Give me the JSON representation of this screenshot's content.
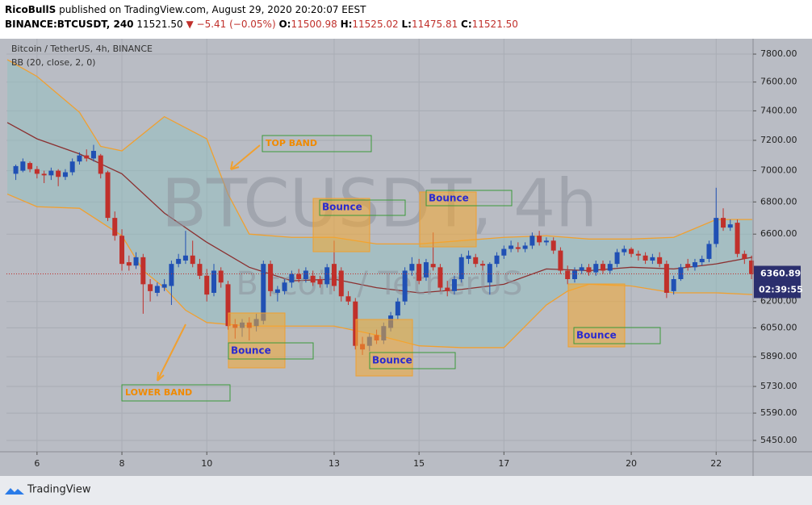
{
  "header": {
    "author": "RicoBullS",
    "published": "published on TradingView.com, August 29, 2020 20:20:07 EEST",
    "symbol": "BINANCE:BTCUSDT, 240",
    "last": "11521.50",
    "change": "▼ −5.41 (−0.05%)",
    "open_label": "O:",
    "open": "11500.98",
    "high_label": "H:",
    "high": "11525.02",
    "low_label": "L:",
    "low": "11475.81",
    "close_label": "C:",
    "close": "11521.50"
  },
  "chart_data": {
    "type": "candlestick",
    "title": "Bitcoin / TetherUS, 4h, BINANCE",
    "indicator": "BB (20, close, 2, 0)",
    "watermark": "BTCUSDT, 4h",
    "watermark_sub": "Bitcoin / TetherUS",
    "log_scale": true,
    "grid": true,
    "up_color": "#2050b4",
    "down_color": "#c0302b",
    "band_fill": "#8fc0c0",
    "xlim": [
      5.28,
      22.87
    ],
    "xticks": [
      6,
      8,
      10,
      13,
      15,
      17,
      20,
      22
    ],
    "ylim": [
      5393,
      7912
    ],
    "yticks": [
      {
        "value": 7800,
        "label": "7800.00"
      },
      {
        "value": 7600,
        "label": "7600.00"
      },
      {
        "value": 7400,
        "label": "7400.00"
      },
      {
        "value": 7200,
        "label": "7200.00"
      },
      {
        "value": 7000,
        "label": "7000.00"
      },
      {
        "value": 6800,
        "label": "6800.00"
      },
      {
        "value": 6600,
        "label": "6600.00"
      },
      {
        "value": 6200,
        "label": "6200.00"
      },
      {
        "value": 6050,
        "label": "6050.00"
      },
      {
        "value": 5890,
        "label": "5890.00"
      },
      {
        "value": 5730,
        "label": "5730.00"
      },
      {
        "value": 5590,
        "label": "5590.00"
      },
      {
        "value": 5450,
        "label": "5450.00"
      }
    ],
    "last_price": 6360.89,
    "countdown": "02:39:55",
    "candles": [
      {
        "x": 5.5,
        "open": 6980,
        "high": 7040,
        "low": 6940,
        "close": 7030
      },
      {
        "x": 5.667,
        "open": 7000,
        "high": 7080,
        "low": 6990,
        "close": 7060
      },
      {
        "x": 5.833,
        "open": 7050,
        "high": 7060,
        "low": 6990,
        "close": 7010
      },
      {
        "x": 6,
        "open": 7010,
        "high": 7030,
        "low": 6950,
        "close": 6980
      },
      {
        "x": 6.167,
        "open": 6980,
        "high": 7000,
        "low": 6920,
        "close": 6970
      },
      {
        "x": 6.333,
        "open": 6970,
        "high": 7020,
        "low": 6940,
        "close": 7000
      },
      {
        "x": 6.5,
        "open": 7000,
        "high": 7010,
        "low": 6900,
        "close": 6960
      },
      {
        "x": 6.667,
        "open": 6960,
        "high": 7010,
        "low": 6940,
        "close": 6990
      },
      {
        "x": 6.833,
        "open": 6990,
        "high": 7080,
        "low": 6970,
        "close": 7060
      },
      {
        "x": 7,
        "open": 7060,
        "high": 7120,
        "low": 7040,
        "close": 7100
      },
      {
        "x": 7.167,
        "open": 7100,
        "high": 7140,
        "low": 7060,
        "close": 7080
      },
      {
        "x": 7.333,
        "open": 7080,
        "high": 7170,
        "low": 7060,
        "close": 7130
      },
      {
        "x": 7.5,
        "open": 7100,
        "high": 7110,
        "low": 6950,
        "close": 6980
      },
      {
        "x": 7.667,
        "open": 6990,
        "high": 7000,
        "low": 6680,
        "close": 6700
      },
      {
        "x": 7.833,
        "open": 6700,
        "high": 6740,
        "low": 6560,
        "close": 6590
      },
      {
        "x": 8,
        "open": 6590,
        "high": 6630,
        "low": 6380,
        "close": 6420
      },
      {
        "x": 8.167,
        "open": 6430,
        "high": 6470,
        "low": 6380,
        "close": 6410
      },
      {
        "x": 8.333,
        "open": 6410,
        "high": 6490,
        "low": 6390,
        "close": 6460
      },
      {
        "x": 8.5,
        "open": 6460,
        "high": 6480,
        "low": 6130,
        "close": 6300
      },
      {
        "x": 8.667,
        "open": 6300,
        "high": 6330,
        "low": 6200,
        "close": 6260
      },
      {
        "x": 8.833,
        "open": 6250,
        "high": 6310,
        "low": 6230,
        "close": 6290
      },
      {
        "x": 9,
        "open": 6280,
        "high": 6330,
        "low": 6260,
        "close": 6300
      },
      {
        "x": 9.167,
        "open": 6290,
        "high": 6440,
        "low": 6180,
        "close": 6420
      },
      {
        "x": 9.333,
        "open": 6420,
        "high": 6480,
        "low": 6400,
        "close": 6450
      },
      {
        "x": 9.5,
        "open": 6440,
        "high": 6620,
        "low": 6420,
        "close": 6470
      },
      {
        "x": 9.667,
        "open": 6470,
        "high": 6560,
        "low": 6400,
        "close": 6420
      },
      {
        "x": 9.833,
        "open": 6420,
        "high": 6450,
        "low": 6330,
        "close": 6350
      },
      {
        "x": 10,
        "open": 6350,
        "high": 6390,
        "low": 6200,
        "close": 6240
      },
      {
        "x": 10.167,
        "open": 6250,
        "high": 6420,
        "low": 6230,
        "close": 6380
      },
      {
        "x": 10.333,
        "open": 6380,
        "high": 6400,
        "low": 6280,
        "close": 6310
      },
      {
        "x": 10.5,
        "open": 6300,
        "high": 6320,
        "low": 6040,
        "close": 6060
      },
      {
        "x": 10.667,
        "open": 6070,
        "high": 6100,
        "low": 5990,
        "close": 6050
      },
      {
        "x": 10.833,
        "open": 6050,
        "high": 6100,
        "low": 6000,
        "close": 6080
      },
      {
        "x": 11,
        "open": 6080,
        "high": 6110,
        "low": 5980,
        "close": 6050
      },
      {
        "x": 11.167,
        "open": 6060,
        "high": 6130,
        "low": 6030,
        "close": 6100
      },
      {
        "x": 11.333,
        "open": 6090,
        "high": 6440,
        "low": 6070,
        "close": 6420
      },
      {
        "x": 11.5,
        "open": 6420,
        "high": 6440,
        "low": 6230,
        "close": 6260
      },
      {
        "x": 11.667,
        "open": 6250,
        "high": 6290,
        "low": 6200,
        "close": 6270
      },
      {
        "x": 11.833,
        "open": 6260,
        "high": 6330,
        "low": 6240,
        "close": 6310
      },
      {
        "x": 12,
        "open": 6310,
        "high": 6380,
        "low": 6280,
        "close": 6360
      },
      {
        "x": 12.167,
        "open": 6360,
        "high": 6390,
        "low": 6310,
        "close": 6330
      },
      {
        "x": 12.333,
        "open": 6330,
        "high": 6400,
        "low": 6310,
        "close": 6380
      },
      {
        "x": 12.5,
        "open": 6350,
        "high": 6380,
        "low": 6290,
        "close": 6310
      },
      {
        "x": 12.667,
        "open": 6330,
        "high": 6350,
        "low": 6280,
        "close": 6300
      },
      {
        "x": 12.833,
        "open": 6300,
        "high": 6420,
        "low": 6280,
        "close": 6400
      },
      {
        "x": 13,
        "open": 6420,
        "high": 6560,
        "low": 6260,
        "close": 6290
      },
      {
        "x": 13.167,
        "open": 6380,
        "high": 6400,
        "low": 6200,
        "close": 6230
      },
      {
        "x": 13.333,
        "open": 6230,
        "high": 6260,
        "low": 6180,
        "close": 6200
      },
      {
        "x": 13.5,
        "open": 6200,
        "high": 6220,
        "low": 5930,
        "close": 5950
      },
      {
        "x": 13.667,
        "open": 5960,
        "high": 6000,
        "low": 5900,
        "close": 5930
      },
      {
        "x": 13.833,
        "open": 5950,
        "high": 6020,
        "low": 5920,
        "close": 6000
      },
      {
        "x": 14,
        "open": 6010,
        "high": 6040,
        "low": 5960,
        "close": 5980
      },
      {
        "x": 14.167,
        "open": 5980,
        "high": 6080,
        "low": 5960,
        "close": 6060
      },
      {
        "x": 14.333,
        "open": 6050,
        "high": 6140,
        "low": 6030,
        "close": 6120
      },
      {
        "x": 14.5,
        "open": 6120,
        "high": 6220,
        "low": 6100,
        "close": 6200
      },
      {
        "x": 14.667,
        "open": 6200,
        "high": 6400,
        "low": 6180,
        "close": 6380
      },
      {
        "x": 14.833,
        "open": 6380,
        "high": 6460,
        "low": 6350,
        "close": 6420
      },
      {
        "x": 15,
        "open": 6420,
        "high": 6450,
        "low": 6300,
        "close": 6320
      },
      {
        "x": 15.167,
        "open": 6340,
        "high": 6450,
        "low": 6320,
        "close": 6430
      },
      {
        "x": 15.333,
        "open": 6420,
        "high": 6610,
        "low": 6380,
        "close": 6400
      },
      {
        "x": 15.5,
        "open": 6400,
        "high": 6420,
        "low": 6260,
        "close": 6280
      },
      {
        "x": 15.667,
        "open": 6280,
        "high": 6320,
        "low": 6230,
        "close": 6260
      },
      {
        "x": 15.833,
        "open": 6260,
        "high": 6350,
        "low": 6240,
        "close": 6330
      },
      {
        "x": 16,
        "open": 6330,
        "high": 6480,
        "low": 6310,
        "close": 6460
      },
      {
        "x": 16.167,
        "open": 6450,
        "high": 6500,
        "low": 6420,
        "close": 6470
      },
      {
        "x": 16.333,
        "open": 6460,
        "high": 6480,
        "low": 6400,
        "close": 6420
      },
      {
        "x": 16.5,
        "open": 6420,
        "high": 6440,
        "low": 6380,
        "close": 6410
      },
      {
        "x": 16.667,
        "open": 6310,
        "high": 6430,
        "low": 6240,
        "close": 6420
      },
      {
        "x": 16.833,
        "open": 6420,
        "high": 6490,
        "low": 6400,
        "close": 6470
      },
      {
        "x": 17,
        "open": 6470,
        "high": 6530,
        "low": 6450,
        "close": 6510
      },
      {
        "x": 17.167,
        "open": 6510,
        "high": 6560,
        "low": 6490,
        "close": 6530
      },
      {
        "x": 17.333,
        "open": 6520,
        "high": 6550,
        "low": 6490,
        "close": 6510
      },
      {
        "x": 17.5,
        "open": 6510,
        "high": 6550,
        "low": 6490,
        "close": 6530
      },
      {
        "x": 17.667,
        "open": 6530,
        "high": 6610,
        "low": 6510,
        "close": 6590
      },
      {
        "x": 17.833,
        "open": 6590,
        "high": 6620,
        "low": 6530,
        "close": 6550
      },
      {
        "x": 18,
        "open": 6550,
        "high": 6580,
        "low": 6530,
        "close": 6560
      },
      {
        "x": 18.167,
        "open": 6560,
        "high": 6580,
        "low": 6480,
        "close": 6500
      },
      {
        "x": 18.333,
        "open": 6500,
        "high": 6520,
        "low": 6360,
        "close": 6380
      },
      {
        "x": 18.5,
        "open": 6380,
        "high": 6410,
        "low": 6300,
        "close": 6330
      },
      {
        "x": 18.667,
        "open": 6330,
        "high": 6400,
        "low": 6310,
        "close": 6380
      },
      {
        "x": 18.833,
        "open": 6380,
        "high": 6420,
        "low": 6360,
        "close": 6400
      },
      {
        "x": 19,
        "open": 6400,
        "high": 6420,
        "low": 6350,
        "close": 6370
      },
      {
        "x": 19.167,
        "open": 6370,
        "high": 6440,
        "low": 6350,
        "close": 6420
      },
      {
        "x": 19.333,
        "open": 6420,
        "high": 6440,
        "low": 6360,
        "close": 6380
      },
      {
        "x": 19.5,
        "open": 6380,
        "high": 6440,
        "low": 6360,
        "close": 6420
      },
      {
        "x": 19.667,
        "open": 6420,
        "high": 6510,
        "low": 6400,
        "close": 6490
      },
      {
        "x": 19.833,
        "open": 6490,
        "high": 6530,
        "low": 6470,
        "close": 6510
      },
      {
        "x": 20,
        "open": 6510,
        "high": 6520,
        "low": 6460,
        "close": 6480
      },
      {
        "x": 20.167,
        "open": 6480,
        "high": 6500,
        "low": 6440,
        "close": 6470
      },
      {
        "x": 20.333,
        "open": 6470,
        "high": 6490,
        "low": 6420,
        "close": 6440
      },
      {
        "x": 20.5,
        "open": 6440,
        "high": 6480,
        "low": 6420,
        "close": 6460
      },
      {
        "x": 20.667,
        "open": 6460,
        "high": 6490,
        "low": 6400,
        "close": 6420
      },
      {
        "x": 20.833,
        "open": 6420,
        "high": 6440,
        "low": 6220,
        "close": 6250
      },
      {
        "x": 21,
        "open": 6260,
        "high": 6350,
        "low": 6240,
        "close": 6330
      },
      {
        "x": 21.167,
        "open": 6330,
        "high": 6420,
        "low": 6320,
        "close": 6400
      },
      {
        "x": 21.333,
        "open": 6420,
        "high": 6450,
        "low": 6380,
        "close": 6400
      },
      {
        "x": 21.5,
        "open": 6400,
        "high": 6450,
        "low": 6380,
        "close": 6430
      },
      {
        "x": 21.667,
        "open": 6430,
        "high": 6470,
        "low": 6410,
        "close": 6450
      },
      {
        "x": 21.833,
        "open": 6450,
        "high": 6560,
        "low": 6430,
        "close": 6540
      },
      {
        "x": 22,
        "open": 6540,
        "high": 6890,
        "low": 6520,
        "close": 6700
      },
      {
        "x": 22.167,
        "open": 6700,
        "high": 6760,
        "low": 6620,
        "close": 6640
      },
      {
        "x": 22.333,
        "open": 6640,
        "high": 6690,
        "low": 6620,
        "close": 6660
      },
      {
        "x": 22.5,
        "open": 6670,
        "high": 6690,
        "low": 6460,
        "close": 6480
      },
      {
        "x": 22.667,
        "open": 6480,
        "high": 6500,
        "low": 6420,
        "close": 6450
      },
      {
        "x": 22.833,
        "open": 6440,
        "high": 6470,
        "low": 6330,
        "close": 6360
      }
    ],
    "series": [
      {
        "color": "#f0a030",
        "x": [
          5.3,
          6,
          7,
          7.5,
          8,
          9,
          10,
          10.5,
          11,
          12,
          13,
          14,
          15,
          16,
          17,
          18,
          19,
          20,
          21,
          22,
          22.85
        ],
        "values": [
          7760,
          7640,
          7390,
          7160,
          7130,
          7360,
          7210,
          6850,
          6600,
          6580,
          6580,
          6540,
          6540,
          6560,
          6580,
          6590,
          6570,
          6570,
          6580,
          6690,
          6690
        ]
      },
      {
        "color": "#8b3030",
        "x": [
          5.3,
          6,
          7,
          8,
          9,
          10,
          11,
          12,
          13,
          14,
          15,
          16,
          17,
          18,
          19,
          20,
          21,
          22,
          22.85
        ],
        "values": [
          7320,
          7210,
          7110,
          6980,
          6730,
          6550,
          6400,
          6320,
          6330,
          6280,
          6250,
          6270,
          6300,
          6390,
          6380,
          6400,
          6390,
          6420,
          6460
        ]
      },
      {
        "color": "#f0a030",
        "x": [
          5.3,
          6,
          7,
          8,
          8.5,
          9,
          9.5,
          10,
          11,
          12,
          13,
          14,
          15,
          16,
          17,
          18,
          18.5,
          19,
          20,
          21,
          22,
          22.85
        ],
        "values": [
          6850,
          6770,
          6760,
          6590,
          6380,
          6280,
          6150,
          6080,
          6060,
          6060,
          6060,
          6010,
          5950,
          5940,
          5940,
          6180,
          6260,
          6300,
          6290,
          6250,
          6250,
          6240
        ]
      }
    ],
    "annotations": [
      "TOP BAND",
      "LOWER BAND",
      "Bounce",
      "Bounce",
      "Bounce",
      "Bounce",
      "Bounce"
    ]
  },
  "footer": {
    "brand": "TradingView"
  }
}
